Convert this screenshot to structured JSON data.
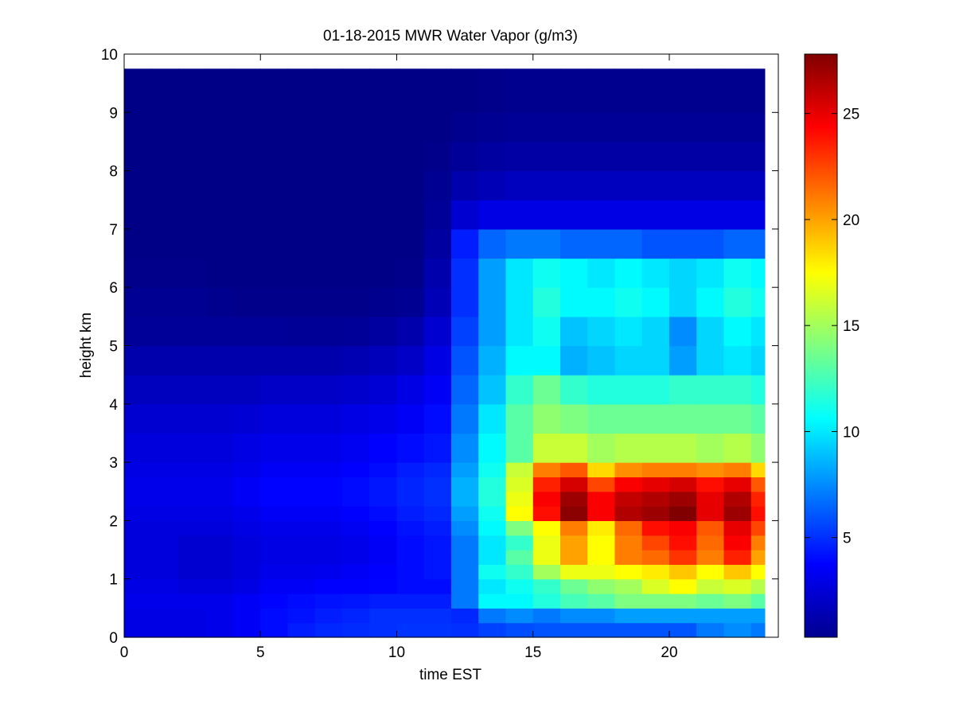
{
  "chart_data": {
    "type": "heatmap",
    "title": "01-18-2015 MWR Water Vapor (g/m3)",
    "xlabel": "time EST",
    "ylabel": "height km",
    "xlim": [
      0,
      24
    ],
    "ylim": [
      0,
      10
    ],
    "x_ticks": [
      "0",
      "5",
      "10",
      "15",
      "20"
    ],
    "y_ticks": [
      "0",
      "1",
      "2",
      "3",
      "4",
      "5",
      "6",
      "7",
      "8",
      "9",
      "10"
    ],
    "colorbar": {
      "colormap": "jet",
      "range": [
        0.3,
        27.8
      ],
      "ticks": [
        "5",
        "10",
        "15",
        "20",
        "25"
      ]
    },
    "data_extent": {
      "time_max": 23.5,
      "height_max": 9.75
    },
    "time_columns": [
      0,
      1,
      2,
      3,
      4,
      5,
      6,
      7,
      8,
      9,
      10,
      11,
      12,
      13,
      14,
      15,
      16,
      17,
      18,
      19,
      20,
      21,
      22,
      23
    ],
    "height_rows_km": [
      0,
      0.25,
      0.5,
      0.75,
      1.0,
      1.25,
      1.5,
      1.75,
      2.0,
      2.25,
      2.5,
      2.75,
      3.0,
      3.5,
      4.0,
      4.5,
      5.0,
      5.5,
      6.0,
      6.5,
      7.0,
      7.5,
      8.0,
      8.5,
      9.0
    ],
    "values_g_m3": [
      [
        3.0,
        3.0,
        3.0,
        3.2,
        3.5,
        4.0,
        4.5,
        4.8,
        4.9,
        5.0,
        5.1,
        5.1,
        5.0,
        5.5,
        5.8,
        6.0,
        6.0,
        6.0,
        6.0,
        6.0,
        6.0,
        7.0,
        7.5,
        7.0
      ],
      [
        3.0,
        3.0,
        3.0,
        3.2,
        3.5,
        4.0,
        4.2,
        4.5,
        4.7,
        5.0,
        5.0,
        5.0,
        4.8,
        7.0,
        7.5,
        7.0,
        7.5,
        7.5,
        8.0,
        8.0,
        8.0,
        8.0,
        8.0,
        8.0
      ],
      [
        3.2,
        3.2,
        3.2,
        3.2,
        3.5,
        3.8,
        4.0,
        4.2,
        4.3,
        4.5,
        4.5,
        4.5,
        7.0,
        10.5,
        10.5,
        11.5,
        12.5,
        13.0,
        14.0,
        14.0,
        14.0,
        13.5,
        14.0,
        13.0
      ],
      [
        3.0,
        3.0,
        2.8,
        2.8,
        3.0,
        3.5,
        3.5,
        3.7,
        3.7,
        3.8,
        4.0,
        4.0,
        7.0,
        10.0,
        11.0,
        12.0,
        13.5,
        14.5,
        15.0,
        16.5,
        17.5,
        16.0,
        16.5,
        15.5
      ],
      [
        2.8,
        2.8,
        2.5,
        2.5,
        2.8,
        3.2,
        3.2,
        3.3,
        3.5,
        3.7,
        4.0,
        4.3,
        7.0,
        11.0,
        12.0,
        15.0,
        17.0,
        17.0,
        17.5,
        18.0,
        19.0,
        17.5,
        19.0,
        17.5
      ],
      [
        2.8,
        2.8,
        2.5,
        2.5,
        2.8,
        3.0,
        3.0,
        3.0,
        3.2,
        3.5,
        4.0,
        4.3,
        7.0,
        10.0,
        13.0,
        17.0,
        20.0,
        17.5,
        21.0,
        21.5,
        23.0,
        21.0,
        23.5,
        20.0
      ],
      [
        2.8,
        2.8,
        2.5,
        2.5,
        2.8,
        3.0,
        3.0,
        3.0,
        3.2,
        3.5,
        4.0,
        4.3,
        7.0,
        10.0,
        12.0,
        17.0,
        20.0,
        17.5,
        21.0,
        22.5,
        24.0,
        21.5,
        24.5,
        21.0
      ],
      [
        2.8,
        2.8,
        2.8,
        2.8,
        3.0,
        3.2,
        3.2,
        3.2,
        3.4,
        3.7,
        4.2,
        4.5,
        7.5,
        10.5,
        14.0,
        17.5,
        21.0,
        18.0,
        21.5,
        24.0,
        24.5,
        22.0,
        25.0,
        22.5
      ],
      [
        3.0,
        3.0,
        3.0,
        3.0,
        3.2,
        3.5,
        3.5,
        3.5,
        3.7,
        4.0,
        4.5,
        4.8,
        8.0,
        11.0,
        17.5,
        24.0,
        27.5,
        24.5,
        26.5,
        27.0,
        27.8,
        25.0,
        27.0,
        24.0
      ],
      [
        3.2,
        3.2,
        3.2,
        3.2,
        3.5,
        3.8,
        3.8,
        3.8,
        4.0,
        4.3,
        4.7,
        5.0,
        8.5,
        11.5,
        17.0,
        24.5,
        27.0,
        24.5,
        26.0,
        26.5,
        27.0,
        25.0,
        26.5,
        23.5
      ],
      [
        3.2,
        3.2,
        3.2,
        3.2,
        3.5,
        3.8,
        3.8,
        3.8,
        4.0,
        4.3,
        4.7,
        5.0,
        8.5,
        11.5,
        16.5,
        23.5,
        25.5,
        22.5,
        24.5,
        25.0,
        25.5,
        24.0,
        25.0,
        22.0
      ],
      [
        3.0,
        3.0,
        3.0,
        3.0,
        3.2,
        3.5,
        3.5,
        3.5,
        3.7,
        4.0,
        4.5,
        4.8,
        8.0,
        11.0,
        16.0,
        21.0,
        22.0,
        18.5,
        20.5,
        21.0,
        21.0,
        20.5,
        21.0,
        18.5
      ],
      [
        2.8,
        2.8,
        2.8,
        2.8,
        3.0,
        3.2,
        3.2,
        3.2,
        3.4,
        3.7,
        4.0,
        4.3,
        7.5,
        10.5,
        13.0,
        16.0,
        16.0,
        15.0,
        15.5,
        15.5,
        15.5,
        15.0,
        15.5,
        14.5
      ],
      [
        2.5,
        2.5,
        2.5,
        2.5,
        2.6,
        2.8,
        2.8,
        2.8,
        3.0,
        3.2,
        3.5,
        4.0,
        7.0,
        10.0,
        13.0,
        14.5,
        14.0,
        13.5,
        13.5,
        13.5,
        13.5,
        13.5,
        13.5,
        13.0
      ],
      [
        2.0,
        2.0,
        2.0,
        2.0,
        2.0,
        2.2,
        2.2,
        2.2,
        2.4,
        2.6,
        3.0,
        3.5,
        6.5,
        9.0,
        12.0,
        13.5,
        12.0,
        11.5,
        11.5,
        11.5,
        12.0,
        12.0,
        12.0,
        11.5
      ],
      [
        1.5,
        1.5,
        1.5,
        1.5,
        1.5,
        1.5,
        1.5,
        1.5,
        1.7,
        1.9,
        2.2,
        3.0,
        6.0,
        8.5,
        10.5,
        10.5,
        8.5,
        9.0,
        9.5,
        9.5,
        8.0,
        9.5,
        10.0,
        9.5
      ],
      [
        1.0,
        1.0,
        1.0,
        1.0,
        1.0,
        1.0,
        0.9,
        0.9,
        1.0,
        1.2,
        1.5,
        2.5,
        5.5,
        8.0,
        10.0,
        11.0,
        9.0,
        9.5,
        10.0,
        9.5,
        7.5,
        9.5,
        10.5,
        10.0
      ],
      [
        0.8,
        0.8,
        0.8,
        0.7,
        0.6,
        0.6,
        0.6,
        0.6,
        0.6,
        0.7,
        0.8,
        1.8,
        5.0,
        8.0,
        10.0,
        11.5,
        10.5,
        10.5,
        11.0,
        10.5,
        9.5,
        10.5,
        11.5,
        11.0
      ],
      [
        0.6,
        0.6,
        0.6,
        0.5,
        0.5,
        0.5,
        0.5,
        0.5,
        0.5,
        0.5,
        0.6,
        1.5,
        5.0,
        8.0,
        10.0,
        11.0,
        10.5,
        10.0,
        10.5,
        10.0,
        9.5,
        10.0,
        11.0,
        10.5
      ],
      [
        0.5,
        0.5,
        0.5,
        0.5,
        0.5,
        0.5,
        0.5,
        0.5,
        0.5,
        0.5,
        0.5,
        1.2,
        4.5,
        6.5,
        7.0,
        7.0,
        6.5,
        6.5,
        6.5,
        6.0,
        6.0,
        6.0,
        6.5,
        6.5
      ],
      [
        0.5,
        0.5,
        0.5,
        0.5,
        0.5,
        0.5,
        0.5,
        0.5,
        0.5,
        0.5,
        0.5,
        1.0,
        2.5,
        3.0,
        3.0,
        3.0,
        3.0,
        3.0,
        3.0,
        3.0,
        3.0,
        3.0,
        3.0,
        3.0
      ],
      [
        0.5,
        0.5,
        0.5,
        0.5,
        0.5,
        0.5,
        0.5,
        0.5,
        0.5,
        0.5,
        0.5,
        0.8,
        1.5,
        1.8,
        2.0,
        2.0,
        2.0,
        2.0,
        2.0,
        2.0,
        2.0,
        2.0,
        2.0,
        2.0
      ],
      [
        0.5,
        0.5,
        0.5,
        0.5,
        0.5,
        0.5,
        0.5,
        0.5,
        0.5,
        0.5,
        0.5,
        0.6,
        1.0,
        1.2,
        1.3,
        1.3,
        1.3,
        1.3,
        1.3,
        1.3,
        1.3,
        1.3,
        1.3,
        1.3
      ],
      [
        0.5,
        0.5,
        0.5,
        0.5,
        0.5,
        0.5,
        0.5,
        0.5,
        0.5,
        0.5,
        0.5,
        0.5,
        0.7,
        0.8,
        0.9,
        0.9,
        0.9,
        0.9,
        0.9,
        0.9,
        0.9,
        0.9,
        0.9,
        0.9
      ],
      [
        0.5,
        0.5,
        0.5,
        0.5,
        0.5,
        0.5,
        0.5,
        0.5,
        0.5,
        0.5,
        0.5,
        0.5,
        0.5,
        0.6,
        0.7,
        0.7,
        0.7,
        0.7,
        0.7,
        0.7,
        0.7,
        0.7,
        0.7,
        0.7
      ]
    ]
  }
}
